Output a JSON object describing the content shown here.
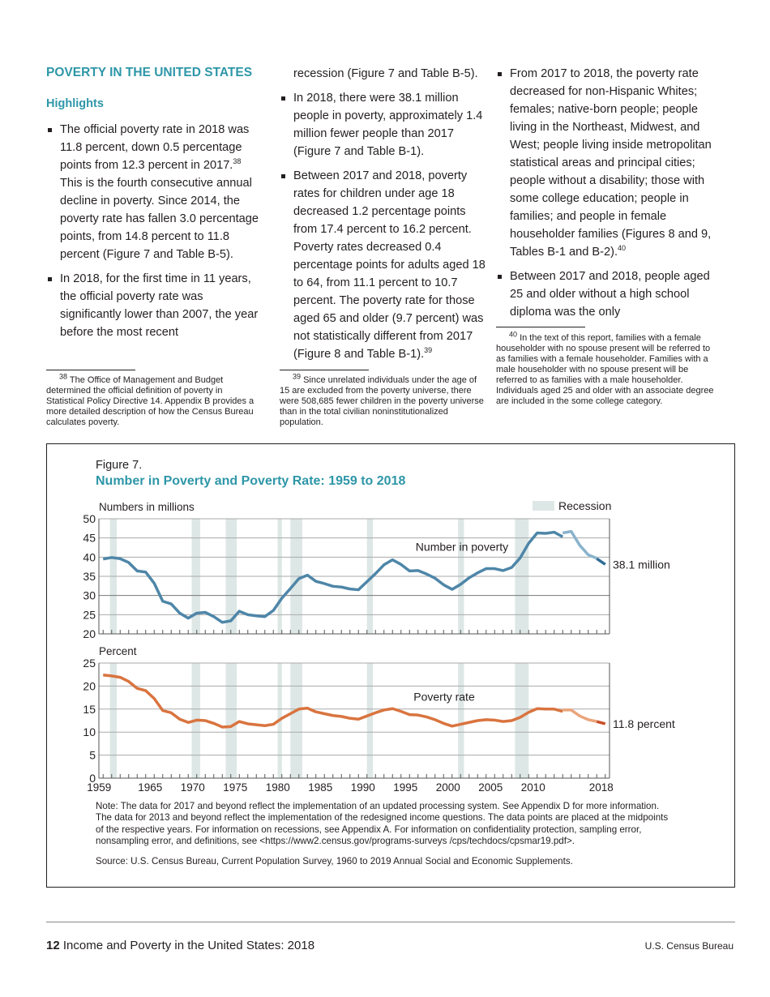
{
  "section_title": "POVERTY IN THE UNITED STATES",
  "subheading": "Highlights",
  "bullets": [
    {
      "before": "The official poverty rate in 2018 was 11.8 percent, down 0.5 percentage points from 12.3 percent in 2017.",
      "sup": "38",
      "after": " This is the fourth consecutive annual decline in poverty. Since 2014, the poverty rate has fallen 3.0 percentage points, from 14.8 percent to 11.8 percent (Figure 7 and Table B-5)."
    },
    {
      "before": "In 2018, for the first time in 11 years, the official poverty rate was significantly lower than 2007, the year before the most recent",
      "continued": "recession (Figure 7 and Table B-5)."
    },
    {
      "before": "In 2018, there were 38.1 million people in poverty, approximately 1.4 million fewer people than 2017 (Figure 7 and Table B-1)."
    },
    {
      "before": "Between 2017 and 2018, poverty rates for children under age 18 decreased 1.2 percentage points from 17.4 percent to 16.2 percent. Poverty rates decreased 0.4 percentage points for adults aged 18 to 64, from 11.1 percent to 10.7 percent. The poverty rate for those aged 65 and older (9.7 percent) was not statistically different from 2017 (Figure 8 and Table B-1).",
      "sup": "39"
    },
    {
      "before": "From 2017 to 2018, the poverty rate decreased for non-Hispanic Whites; females; native-born people; people living in the Northeast, Midwest, and West; people living inside metropolitan statistical areas and principal cities; people without a disability; those with some college education; people in families; and people in female householder families (Figures 8 and 9, Tables B-1 and B-2).",
      "sup": "40"
    },
    {
      "before": "Between 2017 and 2018, people aged 25 and older without a high school diploma was the only"
    }
  ],
  "footnotes": [
    {
      "num": "38",
      "text": " The Office of Management and Budget determined the official definition of poverty in Statistical Policy Directive 14. Appendix B provides a more detailed description of how the Census Bureau calculates poverty."
    },
    {
      "num": "39",
      "text": " Since unrelated individuals under the age of 15 are excluded from the poverty universe, there were 508,685 fewer children in the poverty universe than in the total civilian noninstitutionalized population."
    },
    {
      "num": "40",
      "text": " In the text of this report, families with a female householder with no spouse present will be referred to as families with a female householder. Families with a male householder with no spouse present will be referred to as families with a male householder. Individuals aged 25 and older with an associate degree are included in the some college category."
    }
  ],
  "figure": {
    "label": "Figure 7.",
    "title": "Number in Poverty and Poverty Rate: 1959 to 2018",
    "note": "Note: The data for 2017 and beyond reflect the implementation of an updated processing system. See Appendix D for more information. The data for 2013 and beyond reflect the implementation of the redesigned income questions. The data points are placed at the midpoints of the respective years. For information on recessions, see Appendix A. For information on confidentiality protection, sampling error, nonsampling error, and definitions, see <https://www2.census.gov/programs-surveys /cps/techdocs/cpsmar19.pdf>.",
    "source": "Source: U.S. Census Bureau, Current Population Survey, 1960 to 2019 Annual Social and Economic Supplements."
  },
  "chart_data": [
    {
      "type": "line",
      "ylabel": "Numbers in millions",
      "ylim": [
        20,
        50
      ],
      "yticks": [
        20,
        25,
        30,
        35,
        40,
        45,
        50
      ],
      "legend": "Recession",
      "series_label": "Number in poverty",
      "end_label": "38.1 million",
      "color": "#4e86a8",
      "segments": [
        {
          "x": [
            1959,
            1960,
            1961,
            1962,
            1963,
            1964,
            1965,
            1966,
            1967,
            1968,
            1969,
            1970,
            1971,
            1972,
            1973,
            1974,
            1975,
            1976,
            1977,
            1978,
            1979,
            1980,
            1981,
            1982,
            1983,
            1984,
            1985,
            1986,
            1987,
            1988,
            1989,
            1990,
            1991,
            1992,
            1993,
            1994,
            1995,
            1996,
            1997,
            1998,
            1999,
            2000,
            2001,
            2002,
            2003,
            2004,
            2005,
            2006,
            2007,
            2008,
            2009,
            2010,
            2011,
            2012,
            2013
          ],
          "y": [
            39.5,
            39.9,
            39.6,
            38.6,
            36.4,
            36.1,
            33.2,
            28.5,
            27.8,
            25.4,
            24.1,
            25.4,
            25.6,
            24.5,
            23.0,
            23.4,
            25.9,
            25.0,
            24.7,
            24.5,
            26.1,
            29.3,
            31.8,
            34.4,
            35.3,
            33.7,
            33.1,
            32.4,
            32.2,
            31.7,
            31.5,
            33.6,
            35.7,
            38.0,
            39.3,
            38.1,
            36.4,
            36.5,
            35.6,
            34.5,
            32.8,
            31.6,
            32.9,
            34.6,
            35.9,
            37.0,
            37.0,
            36.5,
            37.3,
            39.8,
            43.6,
            46.3,
            46.2,
            46.5,
            45.3
          ]
        },
        {
          "x": [
            2013,
            2014,
            2015,
            2016,
            2017
          ],
          "y": [
            46.3,
            46.7,
            43.1,
            40.6,
            39.7
          ]
        },
        {
          "x": [
            2017,
            2018
          ],
          "y": [
            39.6,
            38.1
          ]
        }
      ]
    },
    {
      "type": "line",
      "ylabel": "Percent",
      "ylim": [
        0,
        25
      ],
      "yticks": [
        0,
        5,
        10,
        15,
        20,
        25
      ],
      "series_label": "Poverty rate",
      "end_label": "11.8 percent",
      "color": "#d9743f",
      "xlim": [
        1959,
        2018
      ],
      "xticks": [
        "1959",
        "1965",
        "1970",
        "1975",
        "1980",
        "1985",
        "1990",
        "1995",
        "2000",
        "2005",
        "2010",
        "2018"
      ],
      "segments": [
        {
          "x": [
            1959,
            1960,
            1961,
            1962,
            1963,
            1964,
            1965,
            1966,
            1967,
            1968,
            1969,
            1970,
            1971,
            1972,
            1973,
            1974,
            1975,
            1976,
            1977,
            1978,
            1979,
            1980,
            1981,
            1982,
            1983,
            1984,
            1985,
            1986,
            1987,
            1988,
            1989,
            1990,
            1991,
            1992,
            1993,
            1994,
            1995,
            1996,
            1997,
            1998,
            1999,
            2000,
            2001,
            2002,
            2003,
            2004,
            2005,
            2006,
            2007,
            2008,
            2009,
            2010,
            2011,
            2012,
            2013
          ],
          "y": [
            22.4,
            22.2,
            21.9,
            21.0,
            19.5,
            19.0,
            17.3,
            14.7,
            14.2,
            12.8,
            12.1,
            12.6,
            12.5,
            11.9,
            11.1,
            11.2,
            12.3,
            11.8,
            11.6,
            11.4,
            11.7,
            13.0,
            14.0,
            15.0,
            15.2,
            14.4,
            14.0,
            13.6,
            13.4,
            13.0,
            12.8,
            13.5,
            14.2,
            14.8,
            15.1,
            14.5,
            13.8,
            13.7,
            13.3,
            12.7,
            11.9,
            11.3,
            11.7,
            12.1,
            12.5,
            12.7,
            12.6,
            12.3,
            12.5,
            13.2,
            14.3,
            15.1,
            15.0,
            15.0,
            14.5
          ]
        },
        {
          "x": [
            2013,
            2014,
            2015,
            2016,
            2017
          ],
          "y": [
            14.8,
            14.8,
            13.5,
            12.7,
            12.3
          ]
        },
        {
          "x": [
            2017,
            2018
          ],
          "y": [
            12.3,
            11.8
          ]
        }
      ]
    }
  ],
  "recessions": [
    [
      1960.3,
      1961.1
    ],
    [
      1969.9,
      1970.9
    ],
    [
      1973.9,
      1975.2
    ],
    [
      1980.0,
      1980.5
    ],
    [
      1981.5,
      1982.9
    ],
    [
      1990.5,
      1991.2
    ],
    [
      2001.2,
      2001.9
    ],
    [
      2007.9,
      2009.5
    ]
  ],
  "colors": {
    "accent": "#2e96a8",
    "recession": "#dde7e6"
  },
  "footer": {
    "page": "12",
    "title": " Income and Poverty in the United States: 2018",
    "right": "U.S. Census Bureau"
  }
}
